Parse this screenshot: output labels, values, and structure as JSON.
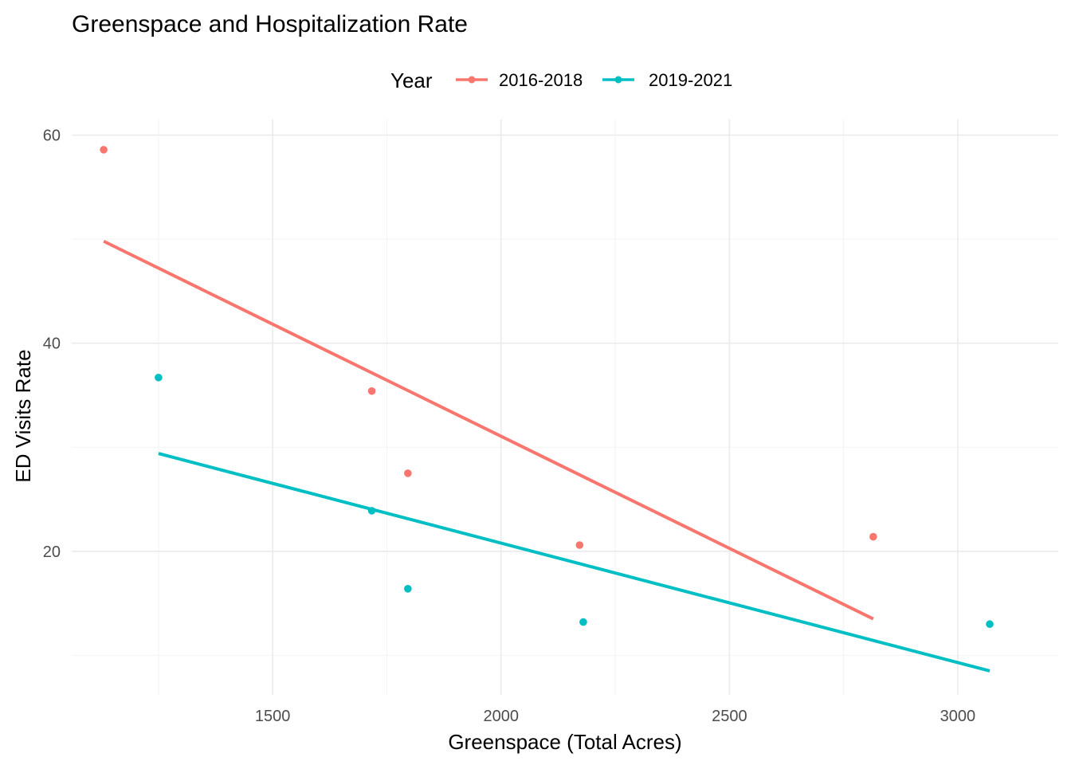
{
  "chart_data": {
    "type": "scatter",
    "title": "Greenspace and Hospitalization Rate",
    "xlabel": "Greenspace (Total Acres)",
    "ylabel": "ED Visits Rate",
    "xlim": [
      1060,
      3220
    ],
    "ylim": [
      6.2,
      61.5
    ],
    "x_ticks": [
      1500,
      2000,
      2500,
      3000
    ],
    "x_tick_labels": [
      "1500",
      "2000",
      "2500",
      "3000"
    ],
    "y_ticks": [
      20,
      40,
      60
    ],
    "y_tick_labels": [
      "20",
      "40",
      "60"
    ],
    "grid": true,
    "legend": {
      "title": "Year",
      "position": "top"
    },
    "series": [
      {
        "name": "2016-2018",
        "color": "#F8766D",
        "points": [
          {
            "x": 1130,
            "y": 58.6
          },
          {
            "x": 1717,
            "y": 35.4
          },
          {
            "x": 1796,
            "y": 27.5
          },
          {
            "x": 2172,
            "y": 20.6
          },
          {
            "x": 2815,
            "y": 21.4
          }
        ],
        "trend": [
          {
            "x": 1130,
            "y": 49.8
          },
          {
            "x": 2815,
            "y": 13.5
          }
        ]
      },
      {
        "name": "2019-2021",
        "color": "#00BFC4",
        "points": [
          {
            "x": 1250,
            "y": 36.7
          },
          {
            "x": 1717,
            "y": 23.9
          },
          {
            "x": 1796,
            "y": 16.4
          },
          {
            "x": 2180,
            "y": 13.2
          },
          {
            "x": 3070,
            "y": 13.0
          }
        ],
        "trend": [
          {
            "x": 1250,
            "y": 29.4
          },
          {
            "x": 3070,
            "y": 8.5
          }
        ]
      }
    ]
  }
}
